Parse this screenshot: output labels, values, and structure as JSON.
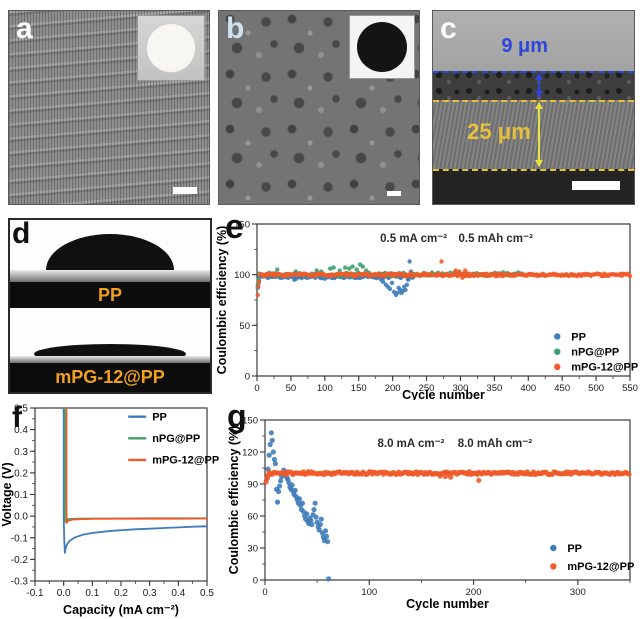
{
  "figure": {
    "panels": {
      "a": {
        "label": "a"
      },
      "b": {
        "label": "b"
      },
      "c": {
        "label": "c",
        "top_thickness": "9 μm",
        "bottom_thickness": "25 μm"
      },
      "d": {
        "label": "d",
        "top_label": "PP",
        "bottom_label": "mPG-12@PP"
      },
      "e": {
        "label": "e"
      },
      "f": {
        "label": "f"
      },
      "g": {
        "label": "g"
      }
    },
    "colors": {
      "pp_blue": "#3f7cba",
      "npg_green": "#3da06e",
      "mpg_orange": "#f05a28",
      "c_blue_annotation": "#2f46d8",
      "c_yellow_annotation": "#e6c13c",
      "d_label_orange": "#f0a01e"
    }
  },
  "chart_data": [
    {
      "id": "e",
      "type": "scatter",
      "xlabel": "Cycle number",
      "ylabel": "Coulombic efficiency (%)",
      "xlim": [
        0,
        550
      ],
      "ylim": [
        0,
        150
      ],
      "xticks": [
        0,
        50,
        100,
        150,
        200,
        250,
        300,
        350,
        400,
        450,
        500,
        550
      ],
      "yticks": [
        0,
        50,
        100,
        150
      ],
      "xminor": 25,
      "yminor": 25,
      "grid": false,
      "annotations": [
        {
          "text": "0.5 mA cm⁻²",
          "fx": 0.42,
          "fy": 0.12
        },
        {
          "text": "0.5 mAh cm⁻²",
          "fx": 0.64,
          "fy": 0.12
        }
      ],
      "legend": {
        "fx": 0.805,
        "fy": 0.74,
        "dy": 0.1,
        "marker": "dot",
        "items": [
          {
            "name": "PP",
            "color": "#3f7cba"
          },
          {
            "name": "nPG@PP",
            "color": "#3da06e"
          },
          {
            "name": "mPG-12@PP",
            "color": "#f05a28"
          }
        ]
      },
      "series": [
        {
          "name": "PP",
          "color": "#3f7cba",
          "r": 2.2,
          "band": {
            "x0": 4,
            "x1": 232,
            "step": 2,
            "base": 98.0,
            "jitter": 1.5,
            "seed": 11
          },
          "points": [
            [
              1,
              87
            ],
            [
              2,
              91
            ],
            [
              3,
              94
            ],
            [
              55,
              95
            ],
            [
              58,
              96
            ],
            [
              100,
              96
            ],
            [
              150,
              97
            ],
            [
              183,
              95
            ],
            [
              186,
              93
            ],
            [
              190,
              90
            ],
            [
              193,
              88
            ],
            [
              196,
              86
            ],
            [
              199,
              92
            ],
            [
              202,
              83
            ],
            [
              205,
              80
            ],
            [
              207,
              82
            ],
            [
              209,
              87
            ],
            [
              211,
              85
            ],
            [
              213,
              82
            ],
            [
              215,
              84
            ],
            [
              217,
              88
            ],
            [
              219,
              85
            ],
            [
              221,
              90
            ],
            [
              223,
              95
            ],
            [
              225,
              113
            ],
            [
              227,
              103
            ],
            [
              229,
              97
            ],
            [
              231,
              99
            ]
          ]
        },
        {
          "name": "nPG@PP",
          "color": "#3da06e",
          "r": 2.2,
          "band": {
            "x0": 3,
            "x1": 390,
            "step": 3,
            "base": 100.5,
            "jitter": 1.7,
            "seed": 22
          },
          "points": [
            [
              1,
              90
            ],
            [
              2,
              95
            ],
            [
              30,
              105
            ],
            [
              57,
              103
            ],
            [
              88,
              104
            ],
            [
              95,
              103
            ],
            [
              108,
              106
            ],
            [
              113,
              107
            ],
            [
              122,
              104
            ],
            [
              130,
              107
            ],
            [
              136,
              106
            ],
            [
              141,
              108
            ],
            [
              147,
              105
            ],
            [
              152,
              110
            ],
            [
              156,
              108
            ],
            [
              161,
              104
            ],
            [
              380,
              101
            ],
            [
              385,
              102
            ]
          ]
        },
        {
          "name": "mPG-12@PP",
          "color": "#f05a28",
          "r": 2.2,
          "band": {
            "x0": 4,
            "x1": 550,
            "step": 2,
            "base": 99.8,
            "jitter": 1.3,
            "seed": 33
          },
          "points": [
            [
              1,
              80
            ],
            [
              2,
              88
            ],
            [
              3,
              93
            ],
            [
              272,
              113
            ],
            [
              293,
              104
            ],
            [
              298,
              103
            ],
            [
              303,
              97
            ],
            [
              307,
              104
            ]
          ]
        }
      ]
    },
    {
      "id": "f",
      "type": "line",
      "xlabel": "Capacity (mA cm⁻²)",
      "ylabel": "Voltage (V)",
      "xlim": [
        -0.1,
        0.5
      ],
      "ylim": [
        -0.3,
        0.5
      ],
      "xticks": [
        -0.1,
        0.0,
        0.1,
        0.2,
        0.3,
        0.4,
        0.5
      ],
      "yticks": [
        -0.3,
        -0.2,
        -0.1,
        0.0,
        0.1,
        0.2,
        0.3,
        0.4,
        0.5
      ],
      "xtickfmt": 1,
      "ytickfmt": 1,
      "xminor": 0.05,
      "yminor": 0.05,
      "grid": false,
      "annotations": [],
      "legend": {
        "fx": 0.6,
        "fy": 0.05,
        "dy": 0.125,
        "marker": "line",
        "items": [
          {
            "name": "PP",
            "color": "#3f7cba"
          },
          {
            "name": "nPG@PP",
            "color": "#3da06e"
          },
          {
            "name": "mPG-12@PP",
            "color": "#f05a28"
          }
        ]
      },
      "series": [
        {
          "name": "PP",
          "color": "#3f7cba",
          "points": [
            [
              0.0,
              0.5
            ],
            [
              0.0,
              0.0
            ],
            [
              0.002,
              -0.1
            ],
            [
              0.004,
              -0.17
            ],
            [
              0.006,
              -0.155
            ],
            [
              0.01,
              -0.135
            ],
            [
              0.02,
              -0.115
            ],
            [
              0.04,
              -0.098
            ],
            [
              0.07,
              -0.085
            ],
            [
              0.1,
              -0.078
            ],
            [
              0.15,
              -0.07
            ],
            [
              0.2,
              -0.065
            ],
            [
              0.25,
              -0.061
            ],
            [
              0.3,
              -0.058
            ],
            [
              0.35,
              -0.055
            ],
            [
              0.4,
              -0.052
            ],
            [
              0.45,
              -0.049
            ],
            [
              0.5,
              -0.047
            ]
          ]
        },
        {
          "name": "nPG@PP",
          "color": "#3da06e",
          "points": [
            [
              0.004,
              0.5
            ],
            [
              0.004,
              -0.025
            ],
            [
              0.01,
              -0.014
            ],
            [
              0.05,
              -0.012
            ],
            [
              0.1,
              -0.011
            ],
            [
              0.2,
              -0.011
            ],
            [
              0.3,
              -0.01
            ],
            [
              0.4,
              -0.01
            ],
            [
              0.5,
              -0.01
            ]
          ]
        },
        {
          "name": "mPG-12@PP",
          "color": "#f05a28",
          "points": [
            [
              0.01,
              0.5
            ],
            [
              0.01,
              -0.032
            ],
            [
              0.015,
              -0.022
            ],
            [
              0.03,
              -0.016
            ],
            [
              0.06,
              -0.014
            ],
            [
              0.1,
              -0.013
            ],
            [
              0.2,
              -0.012
            ],
            [
              0.3,
              -0.012
            ],
            [
              0.4,
              -0.012
            ],
            [
              0.5,
              -0.011
            ]
          ]
        }
      ]
    },
    {
      "id": "g",
      "type": "scatter",
      "xlabel": "Cycle number",
      "ylabel": "Coulombic efficiency (%)",
      "xlim": [
        0,
        350
      ],
      "ylim": [
        0,
        150
      ],
      "xticks": [
        0,
        100,
        200,
        300
      ],
      "yticks": [
        0,
        30,
        60,
        90,
        120,
        150
      ],
      "xminor": 50,
      "yminor": 15,
      "grid": false,
      "annotations": [
        {
          "text": "8.0 mA cm⁻²",
          "fx": 0.4,
          "fy": 0.17
        },
        {
          "text": "8.0 mAh cm⁻²",
          "fx": 0.63,
          "fy": 0.17
        }
      ],
      "legend": {
        "fx": 0.79,
        "fy": 0.8,
        "dy": 0.115,
        "marker": "dot",
        "items": [
          {
            "name": "PP",
            "color": "#3f7cba"
          },
          {
            "name": "mPG-12@PP",
            "color": "#f05a28"
          }
        ]
      },
      "series": [
        {
          "name": "PP",
          "color": "#3f7cba",
          "r": 2.6,
          "points": [
            [
              2,
              95
            ],
            [
              3,
              104
            ],
            [
              4,
              117
            ],
            [
              5,
              127
            ],
            [
              6,
              138
            ],
            [
              7,
              131
            ],
            [
              8,
              120
            ],
            [
              9,
              113
            ],
            [
              10,
              109
            ],
            [
              11,
              85
            ],
            [
              12,
              73
            ],
            [
              13,
              83
            ],
            [
              14,
              88
            ],
            [
              15,
              93
            ],
            [
              16,
              97
            ],
            [
              17,
              100
            ],
            [
              18,
              103
            ],
            [
              19,
              101
            ],
            [
              20,
              98
            ],
            [
              21,
              96
            ],
            [
              22,
              94
            ],
            [
              23,
              91
            ],
            [
              24,
              87
            ],
            [
              25,
              85
            ],
            [
              26,
              89
            ],
            [
              27,
              83
            ],
            [
              28,
              80
            ],
            [
              29,
              84
            ],
            [
              30,
              78
            ],
            [
              31,
              75
            ],
            [
              32,
              72
            ],
            [
              33,
              76
            ],
            [
              34,
              70
            ],
            [
              35,
              66
            ],
            [
              36,
              72
            ],
            [
              37,
              64
            ],
            [
              38,
              60
            ],
            [
              39,
              57
            ],
            [
              40,
              62
            ],
            [
              41,
              55
            ],
            [
              42,
              53
            ],
            [
              43,
              58
            ],
            [
              44,
              56
            ],
            [
              45,
              52
            ],
            [
              46,
              61
            ],
            [
              47,
              66
            ],
            [
              48,
              72
            ],
            [
              49,
              59
            ],
            [
              50,
              54
            ],
            [
              51,
              50
            ],
            [
              52,
              47
            ],
            [
              53,
              52
            ],
            [
              54,
              57
            ],
            [
              55,
              44
            ],
            [
              56,
              40
            ],
            [
              57,
              37
            ],
            [
              58,
              46
            ],
            [
              59,
              41
            ],
            [
              60,
              36
            ],
            [
              61,
              1
            ]
          ]
        },
        {
          "name": "mPG-12@PP",
          "color": "#f05a28",
          "r": 2.6,
          "band": {
            "x0": 4,
            "x1": 350,
            "step": 1.5,
            "base": 100.2,
            "jitter": 1.3,
            "seed": 44
          },
          "points": [
            [
              1,
              92
            ],
            [
              2,
              96
            ],
            [
              3,
              98
            ],
            [
              168,
              97.5
            ],
            [
              173,
              97
            ],
            [
              178,
              96.5
            ],
            [
              205,
              93.5
            ]
          ]
        }
      ]
    }
  ]
}
